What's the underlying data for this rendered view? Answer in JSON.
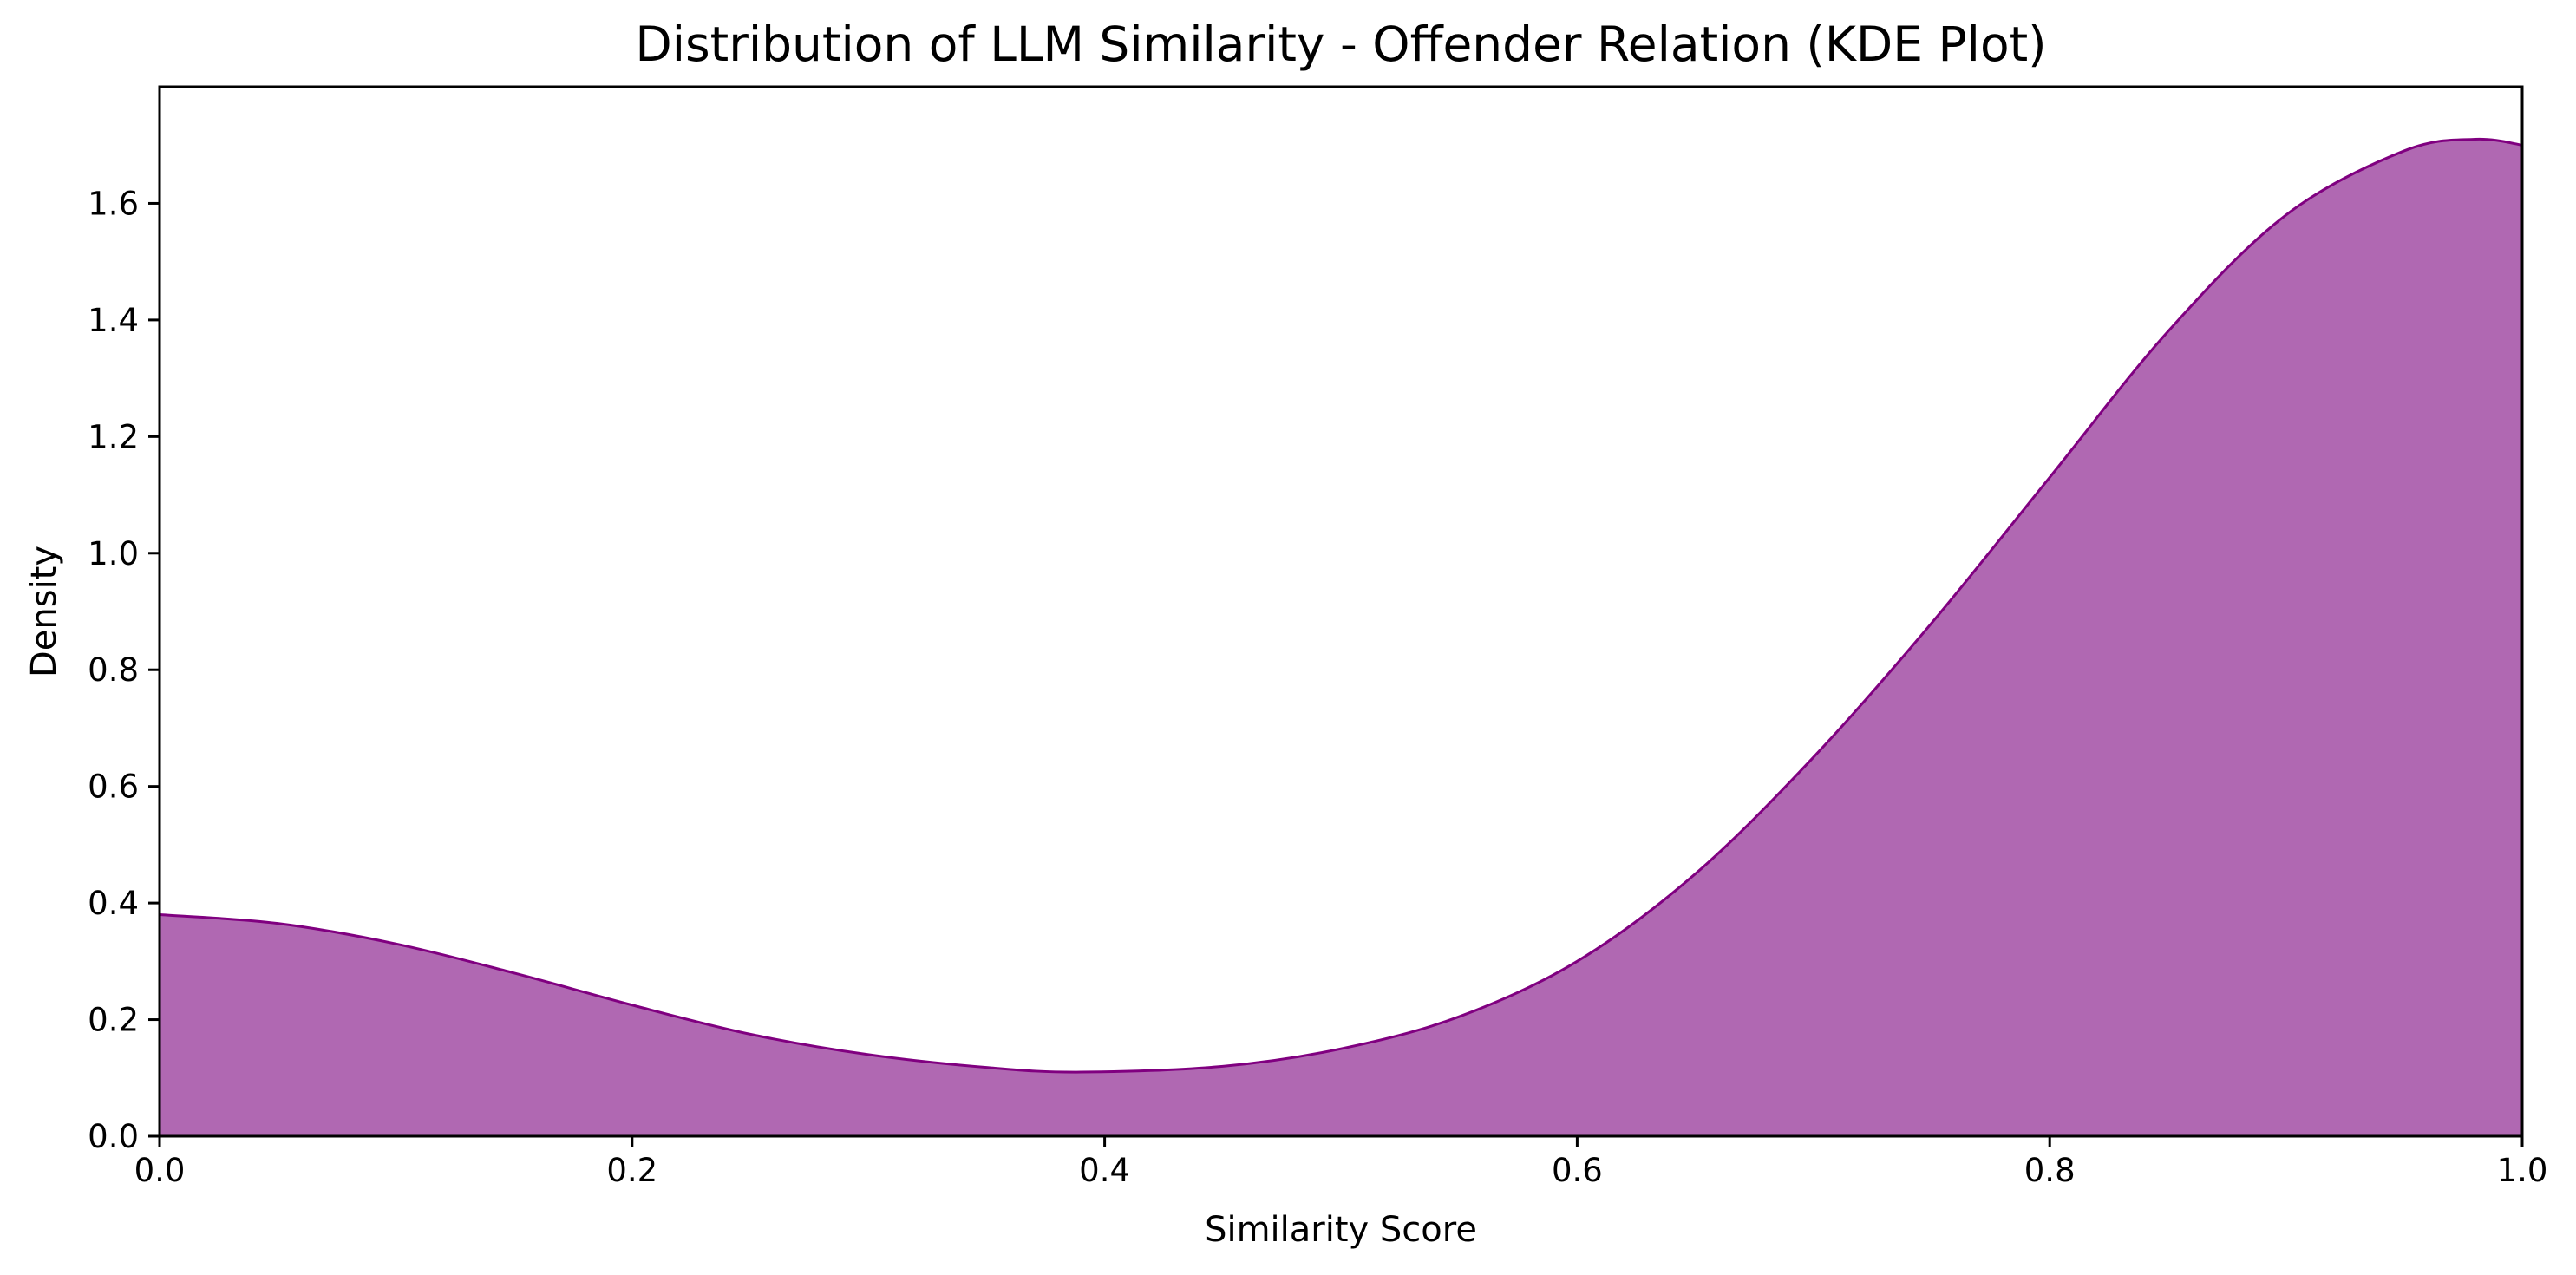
{
  "chart_data": {
    "type": "area",
    "title": "Distribution of LLM Similarity - Offender Relation (KDE Plot)",
    "xlabel": "Similarity Score",
    "ylabel": "Density",
    "xlim": [
      0.0,
      1.0
    ],
    "ylim": [
      0.0,
      1.8
    ],
    "grid": false,
    "xticks": [
      "0.0",
      "0.2",
      "0.4",
      "0.6",
      "0.8",
      "1.0"
    ],
    "yticks": [
      "0.0",
      "0.2",
      "0.4",
      "0.6",
      "0.8",
      "1.0",
      "1.2",
      "1.4",
      "1.6"
    ],
    "colors": {
      "fill": "#b068b2",
      "line": "#800080"
    },
    "series": [
      {
        "x": [
          0.0,
          0.05,
          0.1,
          0.15,
          0.2,
          0.25,
          0.3,
          0.35,
          0.39,
          0.45,
          0.5,
          0.55,
          0.6,
          0.65,
          0.7,
          0.75,
          0.8,
          0.85,
          0.9,
          0.95,
          0.98,
          1.0
        ],
        "y": [
          0.38,
          0.365,
          0.33,
          0.28,
          0.225,
          0.175,
          0.14,
          0.118,
          0.11,
          0.12,
          0.15,
          0.205,
          0.3,
          0.45,
          0.65,
          0.88,
          1.13,
          1.38,
          1.58,
          1.69,
          1.71,
          1.7
        ]
      }
    ]
  }
}
